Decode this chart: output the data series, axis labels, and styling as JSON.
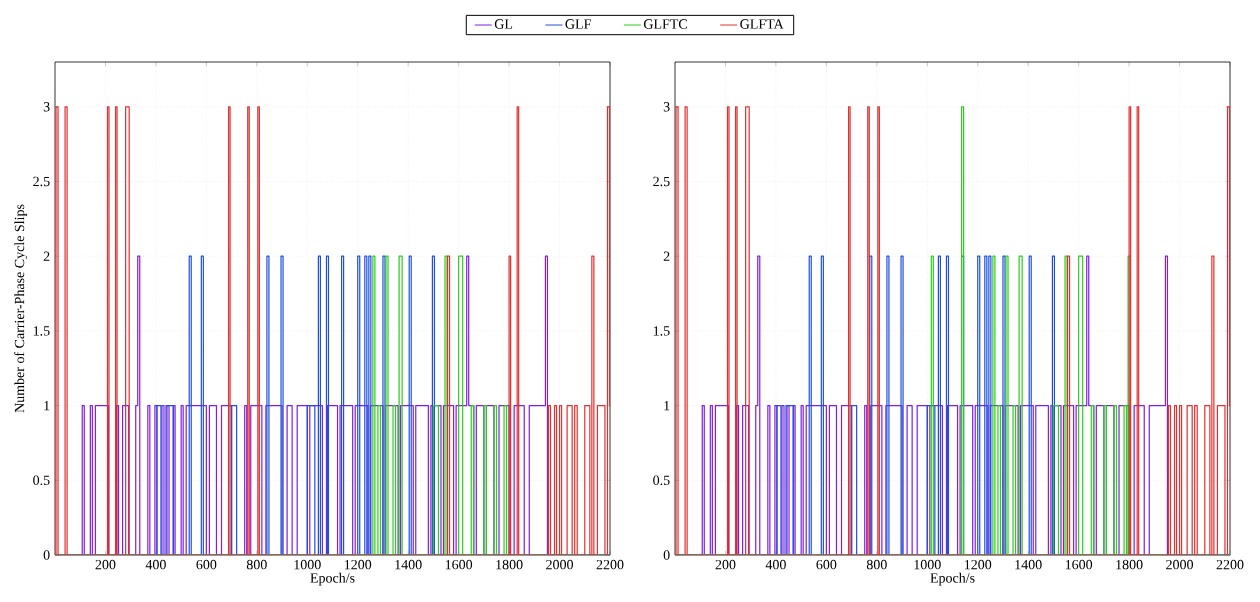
{
  "chart_data": [
    {
      "type": "step",
      "xlabel": "Epoch/s",
      "ylabel": "Number of Carrier-Phase Cycle Slips",
      "xlim": [
        0,
        2200
      ],
      "ylim": [
        0,
        3.3
      ],
      "xticks": [
        200,
        400,
        600,
        800,
        1000,
        1200,
        1400,
        1600,
        1800,
        2000,
        2200
      ],
      "yticks": [
        0,
        0.5,
        1,
        1.5,
        2,
        2.5,
        3
      ],
      "grid": true,
      "legend": "top",
      "series": [
        {
          "name": "GL",
          "color": "#7f1fe0",
          "x": [
            0,
            108,
            116,
            140,
            148,
            160,
            212,
            244,
            252,
            268,
            292,
            320,
            328,
            336,
            368,
            376,
            396,
            404,
            424,
            432,
            444,
            452,
            468,
            476,
            500,
            508,
            520,
            600,
            612,
            640,
            660,
            700,
            752,
            760,
            776,
            820,
            836,
            900,
            920,
            940,
            960,
            1000,
            1010,
            1060,
            1080,
            1120,
            1130,
            1180,
            1190,
            1240,
            1250,
            1300,
            1310,
            1360,
            1370,
            1420,
            1430,
            1480,
            1490,
            1530,
            1540,
            1580,
            1590,
            1632,
            1640,
            1660,
            1670,
            1700,
            1710,
            1740,
            1760,
            1800,
            1820,
            1860,
            1880,
            1944,
            1952,
            2200
          ],
          "values": [
            0,
            1,
            0,
            1,
            0,
            1,
            0,
            1,
            0,
            1,
            0,
            1,
            2,
            0,
            1,
            0,
            1,
            0,
            1,
            0,
            1,
            0,
            1,
            0,
            1,
            0,
            1,
            0,
            1,
            0,
            1,
            0,
            1,
            0,
            1,
            0,
            1,
            0,
            1,
            0,
            1,
            0,
            1,
            0,
            1,
            0,
            1,
            0,
            1,
            0,
            1,
            0,
            1,
            0,
            1,
            0,
            1,
            0,
            1,
            0,
            1,
            0,
            1,
            2,
            1,
            0,
            1,
            0,
            1,
            0,
            1,
            0,
            1,
            0,
            1,
            2,
            0,
            0
          ]
        },
        {
          "name": "GLF",
          "color": "#1f4fe0",
          "x": [
            0,
            404,
            420,
            440,
            470,
            532,
            540,
            580,
            588,
            700,
            720,
            840,
            848,
            896,
            904,
            1000,
            1030,
            1044,
            1052,
            1076,
            1084,
            1136,
            1144,
            1200,
            1208,
            1228,
            1236,
            1244,
            1252,
            1300,
            1308,
            1404,
            1412,
            1496,
            1504,
            2200
          ],
          "values": [
            0,
            1,
            0,
            1,
            0,
            2,
            0,
            2,
            0,
            1,
            0,
            2,
            0,
            2,
            0,
            1,
            0,
            2,
            0,
            2,
            0,
            2,
            0,
            2,
            0,
            2,
            0,
            2,
            0,
            2,
            0,
            2,
            0,
            2,
            0,
            0
          ]
        },
        {
          "name": "GLFTC",
          "color": "#2ecc1f",
          "x": [
            0,
            1260,
            1268,
            1280,
            1290,
            1312,
            1320,
            1340,
            1350,
            1364,
            1376,
            1500,
            1520,
            1546,
            1554,
            1600,
            1616,
            1650,
            1660,
            1700,
            1710,
            1740,
            1750,
            1780,
            1790,
            2200
          ],
          "values": [
            0,
            2,
            0,
            1,
            0,
            2,
            0,
            1,
            0,
            2,
            0,
            1,
            0,
            2,
            0,
            2,
            0,
            1,
            0,
            1,
            0,
            1,
            0,
            1,
            0,
            0
          ]
        },
        {
          "name": "GLFTA",
          "color": "#e03030",
          "x": [
            0,
            4,
            12,
            40,
            48,
            208,
            214,
            240,
            246,
            280,
            294,
            688,
            694,
            764,
            770,
            804,
            810,
            1556,
            1564,
            1800,
            1806,
            1832,
            1838,
            1956,
            1964,
            1980,
            1988,
            2000,
            2008,
            2030,
            2050,
            2060,
            2070,
            2100,
            2120,
            2128,
            2136,
            2150,
            2180,
            2190,
            2198,
            2200
          ],
          "values": [
            0,
            3,
            0,
            3,
            0,
            3,
            0,
            3,
            0,
            3,
            0,
            3,
            0,
            3,
            0,
            3,
            0,
            2,
            0,
            2,
            0,
            3,
            0,
            1,
            0,
            1,
            0,
            1,
            0,
            1,
            0,
            1,
            0,
            1,
            0,
            2,
            0,
            1,
            0,
            3,
            1,
            1
          ]
        }
      ]
    },
    {
      "type": "step",
      "xlabel": "Epoch/s",
      "xlim": [
        0,
        2200
      ],
      "ylim": [
        0,
        3.3
      ],
      "xticks": [
        200,
        400,
        600,
        800,
        1000,
        1200,
        1400,
        1600,
        1800,
        2000,
        2200
      ],
      "yticks": [
        0,
        0.5,
        1,
        1.5,
        2,
        2.5,
        3
      ],
      "grid": true,
      "series": [
        {
          "color": "#7f1fe0",
          "x": [
            0,
            108,
            116,
            140,
            148,
            160,
            212,
            244,
            252,
            268,
            292,
            320,
            328,
            336,
            368,
            376,
            396,
            404,
            424,
            432,
            444,
            452,
            468,
            476,
            500,
            508,
            520,
            600,
            612,
            640,
            660,
            700,
            752,
            760,
            776,
            820,
            836,
            900,
            920,
            940,
            960,
            1000,
            1010,
            1060,
            1080,
            1120,
            1130,
            1180,
            1190,
            1240,
            1250,
            1300,
            1310,
            1360,
            1370,
            1420,
            1430,
            1480,
            1490,
            1530,
            1540,
            1580,
            1590,
            1632,
            1640,
            1660,
            1670,
            1700,
            1710,
            1740,
            1760,
            1800,
            1820,
            1860,
            1880,
            1944,
            1952,
            2200
          ],
          "values": [
            0,
            1,
            0,
            1,
            0,
            1,
            0,
            1,
            0,
            1,
            0,
            1,
            2,
            0,
            1,
            0,
            1,
            0,
            1,
            0,
            1,
            0,
            1,
            0,
            1,
            0,
            1,
            0,
            1,
            0,
            1,
            0,
            1,
            0,
            1,
            0,
            1,
            0,
            1,
            0,
            1,
            0,
            1,
            0,
            1,
            0,
            1,
            0,
            1,
            0,
            1,
            0,
            1,
            0,
            1,
            0,
            1,
            0,
            1,
            0,
            1,
            0,
            1,
            2,
            1,
            0,
            1,
            0,
            1,
            0,
            1,
            0,
            1,
            0,
            1,
            2,
            0,
            0
          ]
        },
        {
          "color": "#1f4fe0",
          "x": [
            0,
            404,
            420,
            440,
            470,
            532,
            540,
            580,
            588,
            700,
            720,
            772,
            780,
            840,
            848,
            896,
            904,
            1000,
            1030,
            1044,
            1052,
            1076,
            1084,
            1136,
            1144,
            1200,
            1208,
            1228,
            1236,
            1244,
            1252,
            1300,
            1308,
            1404,
            1412,
            1496,
            1504,
            2200
          ],
          "values": [
            0,
            1,
            0,
            1,
            0,
            2,
            0,
            2,
            0,
            1,
            0,
            2,
            0,
            2,
            0,
            2,
            0,
            1,
            0,
            2,
            0,
            2,
            0,
            2,
            0,
            2,
            0,
            2,
            0,
            2,
            0,
            2,
            0,
            2,
            0,
            2,
            0,
            0
          ]
        },
        {
          "color": "#2ecc1f",
          "x": [
            0,
            1016,
            1024,
            1136,
            1144,
            1260,
            1268,
            1280,
            1290,
            1312,
            1320,
            1340,
            1350,
            1364,
            1376,
            1500,
            1520,
            1546,
            1554,
            1600,
            1616,
            1650,
            1660,
            1700,
            1710,
            1740,
            1750,
            1780,
            1790,
            1796,
            1804,
            2200
          ],
          "values": [
            0,
            2,
            0,
            3,
            0,
            2,
            0,
            1,
            0,
            2,
            0,
            1,
            0,
            2,
            0,
            1,
            0,
            2,
            0,
            2,
            0,
            1,
            0,
            1,
            0,
            1,
            0,
            1,
            0,
            2,
            0,
            0
          ]
        },
        {
          "color": "#e03030",
          "x": [
            0,
            4,
            12,
            40,
            48,
            208,
            214,
            240,
            246,
            280,
            294,
            688,
            694,
            764,
            770,
            804,
            810,
            1556,
            1564,
            1800,
            1806,
            1832,
            1838,
            1956,
            1964,
            1980,
            1988,
            2000,
            2008,
            2030,
            2050,
            2060,
            2070,
            2100,
            2120,
            2128,
            2136,
            2150,
            2180,
            2190,
            2198,
            2200
          ],
          "values": [
            0,
            3,
            0,
            3,
            0,
            3,
            0,
            3,
            0,
            3,
            0,
            3,
            0,
            3,
            0,
            3,
            0,
            2,
            0,
            3,
            0,
            3,
            0,
            1,
            0,
            1,
            0,
            1,
            0,
            1,
            0,
            1,
            0,
            1,
            0,
            2,
            0,
            1,
            0,
            3,
            1,
            1
          ]
        }
      ]
    }
  ]
}
